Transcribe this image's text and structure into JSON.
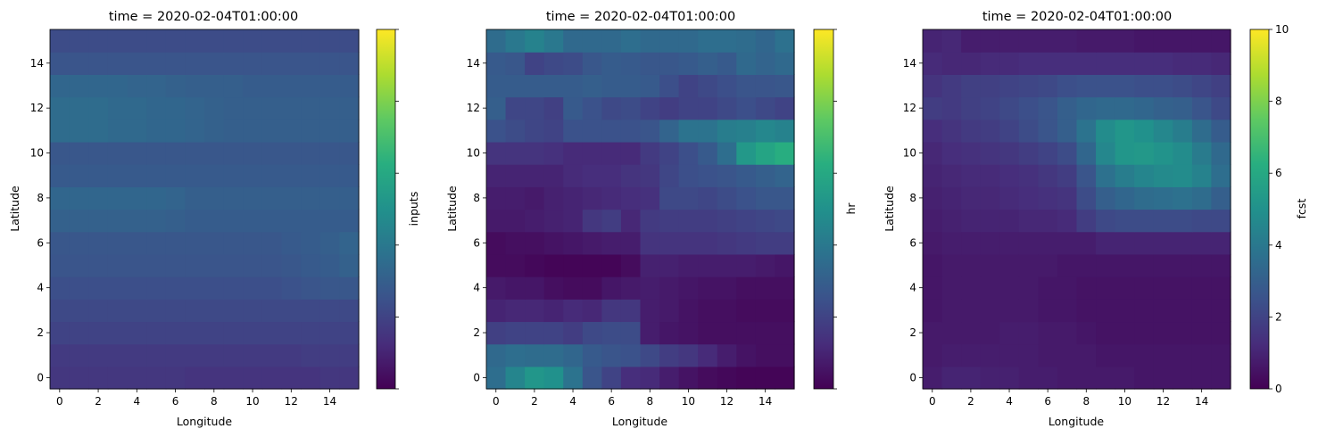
{
  "chart_data": [
    {
      "type": "heatmap",
      "title": "time = 2020-02-04T01:00:00",
      "xlabel": "Longitude",
      "ylabel": "Latitude",
      "colorbar_label": "inputs",
      "x_ticks": [
        "0",
        "2",
        "4",
        "6",
        "8",
        "10",
        "12",
        "14"
      ],
      "y_ticks": [
        "0",
        "2",
        "4",
        "6",
        "8",
        "10",
        "12",
        "14"
      ],
      "colorbar_ticks": [],
      "colorbar_ticks_labeled": false,
      "vmin": 0,
      "vmax": 10,
      "grid": [
        [
          1.6,
          1.6,
          1.6,
          1.6,
          1.6,
          1.6,
          1.6,
          1.5,
          1.5,
          1.5,
          1.5,
          1.5,
          1.5,
          1.5,
          1.6,
          1.6
        ],
        [
          1.7,
          1.7,
          1.7,
          1.7,
          1.7,
          1.7,
          1.7,
          1.7,
          1.7,
          1.7,
          1.7,
          1.7,
          1.7,
          1.8,
          1.8,
          1.8
        ],
        [
          2.0,
          2.0,
          2.0,
          2.0,
          2.0,
          2.0,
          2.0,
          2.0,
          2.0,
          2.0,
          2.0,
          2.0,
          2.0,
          2.0,
          2.0,
          2.0
        ],
        [
          2.2,
          2.2,
          2.2,
          2.2,
          2.2,
          2.2,
          2.2,
          2.2,
          2.2,
          2.2,
          2.2,
          2.2,
          2.2,
          2.2,
          2.2,
          2.2
        ],
        [
          2.4,
          2.4,
          2.4,
          2.4,
          2.4,
          2.4,
          2.4,
          2.4,
          2.4,
          2.4,
          2.4,
          2.4,
          2.5,
          2.6,
          2.7,
          2.7
        ],
        [
          2.6,
          2.6,
          2.6,
          2.6,
          2.6,
          2.6,
          2.6,
          2.6,
          2.6,
          2.6,
          2.6,
          2.6,
          2.7,
          2.8,
          2.9,
          3.1
        ],
        [
          2.7,
          2.7,
          2.7,
          2.7,
          2.7,
          2.7,
          2.7,
          2.7,
          2.7,
          2.7,
          2.7,
          2.7,
          2.8,
          2.9,
          3.0,
          3.2
        ],
        [
          3.1,
          3.1,
          3.1,
          3.1,
          3.1,
          3.1,
          3.0,
          2.9,
          2.9,
          2.9,
          2.9,
          2.9,
          2.9,
          2.9,
          2.9,
          2.9
        ],
        [
          3.3,
          3.3,
          3.3,
          3.3,
          3.3,
          3.3,
          3.2,
          3.0,
          3.0,
          3.0,
          3.0,
          3.0,
          3.0,
          3.0,
          3.0,
          3.0
        ],
        [
          2.8,
          2.8,
          2.8,
          2.8,
          2.8,
          2.8,
          2.8,
          2.8,
          2.8,
          2.8,
          2.8,
          2.8,
          2.8,
          2.8,
          2.8,
          2.8
        ],
        [
          2.7,
          2.7,
          2.7,
          2.7,
          2.7,
          2.7,
          2.7,
          2.7,
          2.7,
          2.7,
          2.7,
          2.7,
          2.7,
          2.7,
          2.7,
          2.7
        ],
        [
          3.5,
          3.5,
          3.5,
          3.4,
          3.4,
          3.3,
          3.3,
          3.2,
          3.1,
          3.0,
          3.0,
          3.0,
          3.0,
          3.0,
          3.0,
          3.0
        ],
        [
          3.5,
          3.5,
          3.5,
          3.4,
          3.4,
          3.3,
          3.3,
          3.2,
          3.1,
          3.0,
          3.0,
          3.0,
          3.0,
          3.0,
          3.0,
          3.0
        ],
        [
          3.3,
          3.3,
          3.3,
          3.3,
          3.2,
          3.2,
          3.1,
          3.0,
          3.0,
          3.0,
          2.9,
          2.9,
          2.9,
          2.9,
          2.9,
          2.9
        ],
        [
          2.6,
          2.6,
          2.6,
          2.6,
          2.6,
          2.6,
          2.6,
          2.6,
          2.6,
          2.6,
          2.6,
          2.6,
          2.6,
          2.6,
          2.6,
          2.6
        ],
        [
          2.3,
          2.3,
          2.3,
          2.3,
          2.3,
          2.3,
          2.3,
          2.3,
          2.3,
          2.3,
          2.3,
          2.3,
          2.3,
          2.3,
          2.3,
          2.3
        ]
      ]
    },
    {
      "type": "heatmap",
      "title": "time = 2020-02-04T01:00:00",
      "xlabel": "Longitude",
      "ylabel": "Latitude",
      "colorbar_label": "hr",
      "x_ticks": [
        "0",
        "2",
        "4",
        "6",
        "8",
        "10",
        "12",
        "14"
      ],
      "y_ticks": [
        "0",
        "2",
        "4",
        "6",
        "8",
        "10",
        "12",
        "14"
      ],
      "colorbar_ticks": [],
      "colorbar_ticks_labeled": false,
      "vmin": 0,
      "vmax": 10,
      "grid": [
        [
          3.6,
          4.5,
          5.2,
          5.0,
          3.8,
          2.6,
          2.0,
          1.3,
          1.2,
          0.8,
          0.5,
          0.3,
          0.2,
          0.1,
          0.1,
          0.1
        ],
        [
          3.4,
          3.6,
          3.5,
          3.5,
          3.3,
          2.8,
          2.6,
          2.5,
          2.2,
          1.8,
          1.6,
          1.2,
          0.8,
          0.5,
          0.4,
          0.4
        ],
        [
          1.9,
          2.0,
          2.0,
          2.0,
          1.8,
          2.2,
          2.3,
          2.3,
          0.8,
          0.6,
          0.5,
          0.4,
          0.4,
          0.4,
          0.4,
          0.4
        ],
        [
          1.0,
          1.1,
          1.1,
          1.0,
          1.2,
          1.1,
          1.6,
          1.6,
          0.8,
          0.7,
          0.5,
          0.4,
          0.4,
          0.3,
          0.3,
          0.3
        ],
        [
          0.7,
          0.6,
          0.6,
          0.4,
          0.3,
          0.3,
          0.6,
          0.7,
          0.8,
          0.7,
          0.6,
          0.5,
          0.5,
          0.4,
          0.4,
          0.4
        ],
        [
          0.3,
          0.3,
          0.2,
          0.1,
          0.1,
          0.1,
          0.1,
          0.3,
          0.9,
          0.9,
          0.8,
          0.8,
          0.8,
          0.8,
          0.7,
          0.6
        ],
        [
          0.3,
          0.4,
          0.4,
          0.5,
          0.6,
          0.7,
          0.8,
          0.8,
          1.5,
          1.5,
          1.5,
          1.5,
          1.6,
          1.7,
          1.8,
          1.8
        ],
        [
          0.7,
          0.7,
          0.8,
          0.9,
          1.0,
          1.6,
          1.8,
          1.1,
          1.7,
          1.8,
          1.8,
          1.8,
          1.9,
          2.0,
          2.1,
          2.2
        ],
        [
          0.8,
          0.8,
          0.7,
          0.9,
          1.0,
          1.1,
          1.2,
          1.3,
          1.4,
          2.2,
          2.2,
          2.1,
          2.3,
          2.5,
          2.7,
          2.7
        ],
        [
          1.0,
          1.0,
          1.0,
          1.0,
          1.2,
          1.3,
          1.3,
          1.5,
          1.6,
          2.1,
          2.4,
          2.5,
          2.6,
          2.8,
          3.0,
          3.2
        ],
        [
          1.5,
          1.5,
          1.5,
          1.4,
          1.2,
          1.2,
          1.2,
          1.2,
          1.7,
          2.0,
          2.4,
          2.8,
          3.6,
          5.3,
          5.8,
          6.2
        ],
        [
          2.5,
          2.3,
          2.1,
          2.0,
          2.5,
          2.5,
          2.5,
          2.5,
          2.6,
          3.2,
          3.8,
          3.8,
          4.2,
          4.3,
          4.6,
          4.4
        ],
        [
          3.0,
          2.1,
          2.1,
          1.9,
          2.8,
          2.5,
          2.2,
          2.3,
          2.0,
          1.8,
          2.0,
          2.0,
          2.2,
          2.4,
          2.2,
          2.0
        ],
        [
          2.9,
          2.9,
          2.9,
          2.9,
          2.9,
          3.0,
          2.9,
          2.9,
          2.8,
          2.4,
          2.0,
          2.2,
          2.4,
          2.6,
          2.6,
          2.7
        ],
        [
          2.8,
          2.7,
          2.0,
          2.2,
          2.3,
          2.7,
          2.9,
          2.8,
          2.7,
          2.7,
          2.8,
          3.0,
          2.8,
          3.4,
          3.2,
          3.4
        ],
        [
          3.5,
          4.0,
          4.4,
          4.0,
          3.4,
          3.4,
          3.4,
          3.6,
          3.4,
          3.4,
          3.4,
          3.6,
          3.6,
          3.5,
          3.3,
          3.7
        ]
      ]
    },
    {
      "type": "heatmap",
      "title": "time = 2020-02-04T01:00:00",
      "xlabel": "Longitude",
      "ylabel": "Latitude",
      "colorbar_label": "fcst",
      "x_ticks": [
        "0",
        "2",
        "4",
        "6",
        "8",
        "10",
        "12",
        "14"
      ],
      "y_ticks": [
        "0",
        "2",
        "4",
        "6",
        "8",
        "10",
        "12",
        "14"
      ],
      "colorbar_ticks": [
        "0",
        "2",
        "4",
        "6",
        "8",
        "10"
      ],
      "colorbar_ticks_labeled": true,
      "vmin": 0,
      "vmax": 10,
      "grid": [
        [
          0.8,
          1.0,
          1.0,
          0.9,
          0.9,
          0.8,
          0.8,
          0.7,
          0.7,
          0.7,
          0.7,
          0.6,
          0.6,
          0.6,
          0.6,
          0.6
        ],
        [
          0.7,
          0.8,
          0.8,
          0.8,
          0.8,
          0.8,
          0.7,
          0.7,
          0.7,
          0.6,
          0.6,
          0.6,
          0.6,
          0.6,
          0.6,
          0.6
        ],
        [
          0.7,
          0.7,
          0.7,
          0.7,
          0.8,
          0.8,
          0.7,
          0.7,
          0.6,
          0.5,
          0.5,
          0.5,
          0.5,
          0.5,
          0.5,
          0.5
        ],
        [
          0.6,
          0.7,
          0.7,
          0.7,
          0.7,
          0.7,
          0.6,
          0.6,
          0.5,
          0.5,
          0.5,
          0.5,
          0.5,
          0.5,
          0.5,
          0.5
        ],
        [
          0.6,
          0.7,
          0.7,
          0.7,
          0.7,
          0.7,
          0.6,
          0.6,
          0.5,
          0.5,
          0.5,
          0.5,
          0.5,
          0.5,
          0.5,
          0.5
        ],
        [
          0.6,
          0.7,
          0.7,
          0.7,
          0.7,
          0.7,
          0.7,
          0.6,
          0.6,
          0.6,
          0.6,
          0.6,
          0.6,
          0.6,
          0.6,
          0.6
        ],
        [
          0.7,
          0.8,
          0.8,
          0.8,
          0.8,
          0.8,
          0.8,
          0.8,
          0.8,
          1.0,
          1.0,
          1.0,
          1.0,
          1.0,
          1.0,
          1.0
        ],
        [
          0.8,
          0.9,
          1.0,
          1.0,
          1.0,
          1.1,
          1.1,
          1.2,
          1.8,
          2.2,
          2.3,
          2.3,
          2.3,
          2.3,
          2.2,
          2.2
        ],
        [
          0.9,
          1.0,
          1.1,
          1.1,
          1.2,
          1.3,
          1.4,
          1.5,
          2.3,
          3.0,
          3.3,
          3.5,
          3.6,
          3.7,
          3.5,
          3.0
        ],
        [
          1.0,
          1.1,
          1.2,
          1.2,
          1.3,
          1.4,
          1.6,
          1.8,
          2.6,
          3.7,
          4.2,
          4.5,
          4.7,
          4.8,
          4.4,
          3.6
        ],
        [
          1.1,
          1.3,
          1.4,
          1.5,
          1.6,
          1.8,
          2.0,
          2.3,
          3.3,
          4.6,
          5.2,
          5.3,
          5.1,
          4.8,
          4.1,
          3.4
        ],
        [
          1.3,
          1.5,
          1.7,
          1.8,
          2.0,
          2.3,
          2.6,
          3.0,
          3.8,
          4.8,
          5.2,
          5.0,
          4.6,
          4.2,
          3.5,
          2.9
        ],
        [
          1.8,
          1.7,
          1.9,
          2.0,
          2.2,
          2.4,
          2.6,
          3.0,
          3.3,
          3.4,
          3.4,
          3.3,
          3.1,
          3.0,
          2.6,
          2.2
        ],
        [
          1.5,
          1.7,
          1.9,
          1.9,
          2.0,
          2.1,
          2.2,
          2.4,
          2.5,
          2.5,
          2.5,
          2.4,
          2.4,
          2.3,
          2.1,
          1.9
        ],
        [
          1.2,
          1.1,
          1.1,
          1.2,
          1.2,
          1.3,
          1.3,
          1.3,
          1.3,
          1.3,
          1.3,
          1.3,
          1.3,
          1.2,
          1.2,
          1.1
        ],
        [
          1.0,
          1.1,
          0.8,
          0.8,
          0.8,
          0.8,
          0.8,
          0.8,
          0.7,
          0.7,
          0.7,
          0.6,
          0.6,
          0.6,
          0.6,
          0.6
        ]
      ]
    }
  ]
}
